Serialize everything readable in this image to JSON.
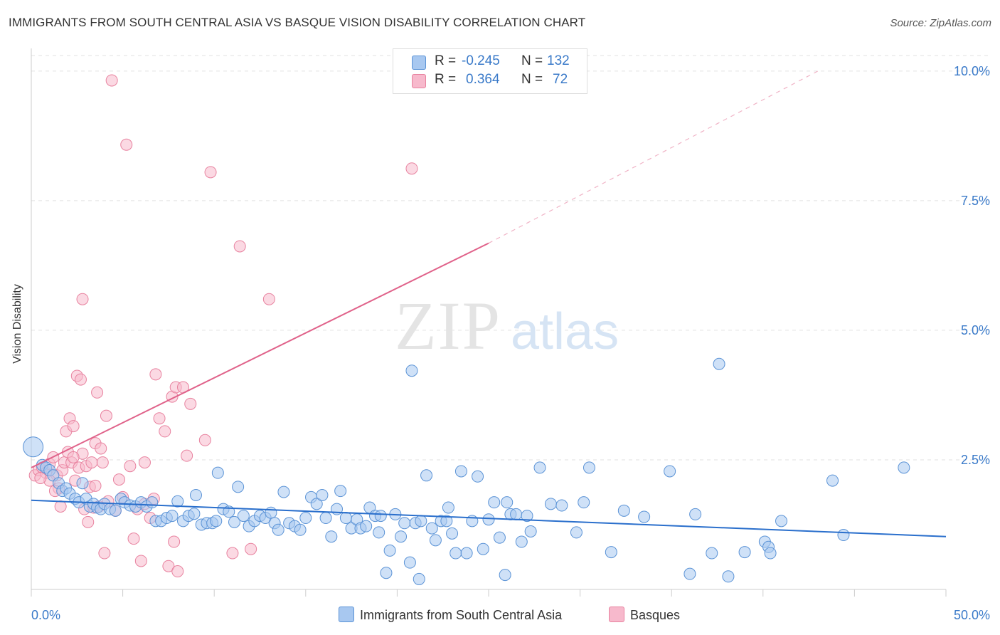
{
  "title": "IMMIGRANTS FROM SOUTH CENTRAL ASIA VS BASQUE VISION DISABILITY CORRELATION CHART",
  "source": "Source: ZipAtlas.com",
  "watermark": {
    "zip": "ZIP",
    "atlas": "atlas"
  },
  "legend_top": {
    "rows": [
      {
        "r_label": "R =",
        "r_value": "-0.245",
        "n_label": "N =",
        "n_value": "132",
        "color": "#a8c8f0"
      },
      {
        "r_label": "R =",
        "r_value": "0.364",
        "n_label": "N =",
        "n_value": "72",
        "color": "#f7b9cc"
      }
    ]
  },
  "legend_bottom": {
    "series1": "Immigrants from South Central Asia",
    "series2": "Basques"
  },
  "chart_data": {
    "type": "scatter",
    "title": "IMMIGRANTS FROM SOUTH CENTRAL ASIA VS BASQUE VISION DISABILITY CORRELATION CHART",
    "xlabel": "",
    "ylabel": "Vision Disability",
    "xlim": [
      0,
      50
    ],
    "ylim": [
      0,
      10.3
    ],
    "x_tick_labels": [
      "0.0%",
      "50.0%"
    ],
    "y_tick_labels": [
      "2.5%",
      "5.0%",
      "7.5%",
      "10.0%"
    ],
    "y_ticks": [
      2.5,
      5.0,
      7.5,
      10.0
    ],
    "grid": true,
    "colors": {
      "blue_fill": "#a8c8f0",
      "blue_stroke": "#5b93d6",
      "blue_line": "#2a6fcc",
      "pink_fill": "#f7b9cc",
      "pink_stroke": "#e8829f",
      "pink_line": "#e0628a",
      "axis_text": "#3a7ac9"
    },
    "series": [
      {
        "name": "Immigrants from South Central Asia",
        "trend": {
          "x0": 0,
          "y0": 1.72,
          "x1": 50,
          "y1": 1.02
        },
        "points": [
          [
            0.1,
            2.75
          ],
          [
            0.6,
            2.4
          ],
          [
            0.8,
            2.35
          ],
          [
            1.0,
            2.3
          ],
          [
            1.2,
            2.2
          ],
          [
            1.5,
            2.05
          ],
          [
            1.7,
            1.9
          ],
          [
            1.9,
            1.95
          ],
          [
            2.1,
            1.85
          ],
          [
            2.4,
            1.75
          ],
          [
            2.6,
            1.68
          ],
          [
            2.8,
            2.05
          ],
          [
            3.0,
            1.75
          ],
          [
            3.2,
            1.6
          ],
          [
            3.4,
            1.65
          ],
          [
            3.6,
            1.58
          ],
          [
            3.8,
            1.55
          ],
          [
            4.0,
            1.65
          ],
          [
            4.3,
            1.55
          ],
          [
            4.6,
            1.52
          ],
          [
            4.9,
            1.75
          ],
          [
            5.1,
            1.68
          ],
          [
            5.4,
            1.62
          ],
          [
            5.7,
            1.6
          ],
          [
            6.0,
            1.68
          ],
          [
            6.3,
            1.6
          ],
          [
            6.6,
            1.68
          ],
          [
            6.8,
            1.32
          ],
          [
            7.1,
            1.32
          ],
          [
            7.4,
            1.38
          ],
          [
            7.7,
            1.42
          ],
          [
            8.0,
            1.7
          ],
          [
            8.3,
            1.32
          ],
          [
            8.6,
            1.42
          ],
          [
            8.9,
            1.46
          ],
          [
            9.0,
            1.82
          ],
          [
            9.3,
            1.25
          ],
          [
            9.6,
            1.28
          ],
          [
            9.9,
            1.28
          ],
          [
            10.1,
            1.32
          ],
          [
            10.2,
            2.25
          ],
          [
            10.5,
            1.55
          ],
          [
            10.8,
            1.5
          ],
          [
            11.1,
            1.3
          ],
          [
            11.3,
            1.98
          ],
          [
            11.6,
            1.42
          ],
          [
            11.9,
            1.22
          ],
          [
            12.2,
            1.32
          ],
          [
            12.5,
            1.42
          ],
          [
            12.8,
            1.38
          ],
          [
            13.1,
            1.48
          ],
          [
            13.3,
            1.28
          ],
          [
            13.5,
            1.15
          ],
          [
            13.8,
            1.88
          ],
          [
            14.1,
            1.28
          ],
          [
            14.4,
            1.22
          ],
          [
            14.7,
            1.15
          ],
          [
            15.0,
            1.38
          ],
          [
            15.3,
            1.78
          ],
          [
            15.6,
            1.65
          ],
          [
            15.9,
            1.82
          ],
          [
            16.1,
            1.38
          ],
          [
            16.4,
            1.02
          ],
          [
            16.7,
            1.55
          ],
          [
            16.9,
            1.9
          ],
          [
            17.2,
            1.38
          ],
          [
            17.5,
            1.18
          ],
          [
            17.8,
            1.35
          ],
          [
            18.0,
            1.18
          ],
          [
            18.3,
            1.22
          ],
          [
            18.5,
            1.58
          ],
          [
            18.8,
            1.42
          ],
          [
            19.1,
            1.42
          ],
          [
            19.4,
            0.32
          ],
          [
            19.6,
            0.75
          ],
          [
            19.9,
            1.45
          ],
          [
            20.2,
            1.02
          ],
          [
            20.4,
            1.28
          ],
          [
            20.7,
            0.52
          ],
          [
            21.0,
            1.28
          ],
          [
            21.3,
            1.32
          ],
          [
            21.6,
            2.2
          ],
          [
            21.9,
            1.18
          ],
          [
            22.1,
            0.95
          ],
          [
            22.4,
            1.32
          ],
          [
            22.7,
            1.32
          ],
          [
            23.0,
            1.08
          ],
          [
            23.2,
            0.7
          ],
          [
            23.5,
            2.28
          ],
          [
            23.8,
            0.7
          ],
          [
            24.1,
            1.32
          ],
          [
            24.4,
            2.18
          ],
          [
            24.7,
            0.78
          ],
          [
            25.0,
            1.35
          ],
          [
            25.3,
            1.68
          ],
          [
            25.6,
            1.0
          ],
          [
            25.9,
            0.28
          ],
          [
            26.2,
            1.45
          ],
          [
            26.5,
            1.45
          ],
          [
            26.8,
            0.92
          ],
          [
            27.1,
            1.42
          ],
          [
            27.3,
            1.12
          ],
          [
            20.8,
            4.22
          ],
          [
            27.8,
            2.35
          ],
          [
            28.4,
            1.65
          ],
          [
            29.0,
            1.62
          ],
          [
            30.2,
            1.68
          ],
          [
            30.5,
            2.35
          ],
          [
            32.4,
            1.52
          ],
          [
            34.9,
            2.28
          ],
          [
            36.0,
            0.3
          ],
          [
            36.3,
            1.45
          ],
          [
            37.2,
            0.7
          ],
          [
            37.6,
            4.35
          ],
          [
            38.1,
            0.25
          ],
          [
            39.0,
            0.72
          ],
          [
            40.1,
            0.92
          ],
          [
            40.3,
            0.82
          ],
          [
            40.4,
            0.7
          ],
          [
            41.0,
            1.32
          ],
          [
            43.8,
            2.1
          ],
          [
            44.4,
            1.05
          ],
          [
            47.7,
            2.35
          ],
          [
            31.7,
            0.72
          ],
          [
            33.5,
            1.4
          ],
          [
            29.8,
            1.1
          ],
          [
            22.8,
            1.58
          ],
          [
            21.2,
            0.2
          ],
          [
            26.0,
            1.68
          ],
          [
            19.0,
            1.1
          ]
        ]
      },
      {
        "name": "Basques",
        "trend": {
          "x0": 0,
          "y0": 2.35,
          "x1": 25.0,
          "y1": 6.68,
          "dash_to_x": 43.0,
          "dash_to_y": 10.0
        },
        "points": [
          [
            0.2,
            2.2
          ],
          [
            0.4,
            2.3
          ],
          [
            0.6,
            2.35
          ],
          [
            0.8,
            2.25
          ],
          [
            1.0,
            2.42
          ],
          [
            1.2,
            2.55
          ],
          [
            1.4,
            2.2
          ],
          [
            1.5,
            1.95
          ],
          [
            1.6,
            1.6
          ],
          [
            1.7,
            2.3
          ],
          [
            1.8,
            2.45
          ],
          [
            1.9,
            3.05
          ],
          [
            2.0,
            2.65
          ],
          [
            2.1,
            3.3
          ],
          [
            2.2,
            2.45
          ],
          [
            2.3,
            3.15
          ],
          [
            2.4,
            2.1
          ],
          [
            2.5,
            4.12
          ],
          [
            2.6,
            2.35
          ],
          [
            2.7,
            4.05
          ],
          [
            2.8,
            2.62
          ],
          [
            2.9,
            1.55
          ],
          [
            3.0,
            2.38
          ],
          [
            3.1,
            1.3
          ],
          [
            3.2,
            1.98
          ],
          [
            3.3,
            2.45
          ],
          [
            3.4,
            1.58
          ],
          [
            3.5,
            2.82
          ],
          [
            3.6,
            3.8
          ],
          [
            3.7,
            1.6
          ],
          [
            3.8,
            2.72
          ],
          [
            3.9,
            2.45
          ],
          [
            4.0,
            0.7
          ],
          [
            4.1,
            3.35
          ],
          [
            4.2,
            1.7
          ],
          [
            4.4,
            9.82
          ],
          [
            4.6,
            1.52
          ],
          [
            4.8,
            2.12
          ],
          [
            5.0,
            1.78
          ],
          [
            5.2,
            8.58
          ],
          [
            5.4,
            2.38
          ],
          [
            5.6,
            0.98
          ],
          [
            5.8,
            1.55
          ],
          [
            6.0,
            0.55
          ],
          [
            6.2,
            2.45
          ],
          [
            6.5,
            1.38
          ],
          [
            6.7,
            1.75
          ],
          [
            6.8,
            4.15
          ],
          [
            7.0,
            3.3
          ],
          [
            7.3,
            3.05
          ],
          [
            7.5,
            0.45
          ],
          [
            7.7,
            3.72
          ],
          [
            7.9,
            3.9
          ],
          [
            7.8,
            0.92
          ],
          [
            8.0,
            0.35
          ],
          [
            2.8,
            5.6
          ],
          [
            8.3,
            3.9
          ],
          [
            8.5,
            2.58
          ],
          [
            8.7,
            3.58
          ],
          [
            9.5,
            2.88
          ],
          [
            9.8,
            8.05
          ],
          [
            11.0,
            0.7
          ],
          [
            11.4,
            6.62
          ],
          [
            12.0,
            0.78
          ],
          [
            13.0,
            5.6
          ],
          [
            20.8,
            8.12
          ],
          [
            1.0,
            2.1
          ],
          [
            0.5,
            2.15
          ],
          [
            1.3,
            1.9
          ],
          [
            3.5,
            2.0
          ],
          [
            6.2,
            1.65
          ],
          [
            2.3,
            2.55
          ]
        ]
      }
    ]
  }
}
